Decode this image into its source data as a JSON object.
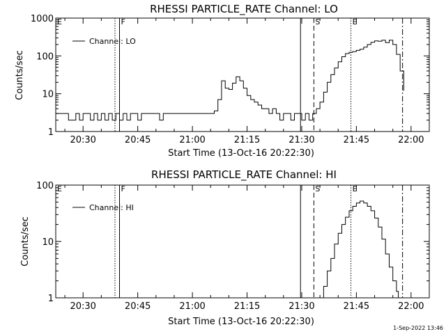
{
  "footer_timestamp": "1-Sep-2022 13:46",
  "chart_data": [
    {
      "type": "line",
      "title": "RHESSI PARTICLE_RATE Channel: LO",
      "xlabel": "Start Time (13-Oct-16 20:22:30)",
      "ylabel": "Counts/sec",
      "yscale": "log",
      "xlim": [
        "20:22:30",
        "22:05:00"
      ],
      "ylim": [
        1,
        1000
      ],
      "x_ticks": [
        "20:30",
        "20:45",
        "21:00",
        "21:15",
        "21:30",
        "21:45",
        "22:00"
      ],
      "y_ticks": [
        "1",
        "10",
        "100",
        "1000"
      ],
      "legend": {
        "position": "top-left",
        "label": "Channel: LO"
      },
      "markers": [
        {
          "label": "E",
          "time": "20:22:30",
          "style": "none"
        },
        {
          "label": "",
          "time": "20:38:45",
          "style": "dotted"
        },
        {
          "label": "F",
          "time": "20:40:00",
          "style": "solid"
        },
        {
          "label": "",
          "time": "21:29:40",
          "style": "solid"
        },
        {
          "label": "S",
          "time": "21:33:20",
          "style": "dashed"
        },
        {
          "label": "E",
          "time": "21:43:30",
          "style": "dotted"
        },
        {
          "label": "",
          "time": "21:57:40",
          "style": "dashdot"
        }
      ],
      "series": [
        {
          "name": "Channel: LO",
          "x": [
            "20:22:30",
            "20:24:00",
            "20:26:00",
            "20:28:00",
            "20:29:00",
            "20:30:00",
            "20:32:00",
            "20:33:00",
            "20:34:00",
            "20:35:00",
            "20:36:00",
            "20:37:00",
            "20:38:00",
            "20:39:00",
            "20:40:00",
            "20:41:00",
            "20:42:00",
            "20:43:00",
            "20:44:00",
            "20:45:00",
            "20:46:00",
            "20:48:00",
            "20:50:00",
            "20:51:00",
            "20:52:00",
            "20:53:00",
            "20:54:00",
            "20:56:00",
            "20:58:00",
            "21:00:00",
            "21:02:00",
            "21:04:00",
            "21:06:00",
            "21:07:00",
            "21:08:00",
            "21:09:00",
            "21:10:00",
            "21:11:00",
            "21:12:00",
            "21:13:00",
            "21:14:00",
            "21:15:00",
            "21:16:00",
            "21:17:00",
            "21:18:00",
            "21:19:00",
            "21:20:00",
            "21:21:00",
            "21:22:00",
            "21:23:00",
            "21:24:00",
            "21:25:00",
            "21:26:00",
            "21:27:00",
            "21:28:00",
            "21:29:00",
            "21:30:00",
            "21:31:00",
            "21:32:00",
            "21:33:00",
            "21:34:00",
            "21:35:00",
            "21:36:00",
            "21:37:00",
            "21:38:00",
            "21:39:00",
            "21:40:00",
            "21:41:00",
            "21:42:00",
            "21:43:00",
            "21:44:00",
            "21:45:00",
            "21:46:00",
            "21:47:00",
            "21:48:00",
            "21:49:00",
            "21:50:00",
            "21:51:00",
            "21:52:00",
            "21:53:00",
            "21:54:00",
            "21:55:00",
            "21:56:00",
            "21:57:00",
            "21:58:00"
          ],
          "y": [
            3,
            3,
            2,
            3,
            2,
            3,
            2,
            3,
            2,
            3,
            2,
            3,
            2,
            3,
            2,
            3,
            2,
            3,
            3,
            2,
            3,
            3,
            3,
            2,
            3,
            3,
            3,
            3,
            3,
            3,
            3,
            3,
            3.5,
            7,
            22,
            14,
            13,
            19,
            28,
            22,
            14,
            9,
            7,
            6,
            5,
            4,
            4,
            3,
            4,
            3,
            2,
            3,
            3,
            2,
            3,
            3,
            2,
            3,
            2,
            3,
            4,
            6,
            11,
            20,
            32,
            48,
            70,
            95,
            115,
            125,
            130,
            140,
            150,
            170,
            200,
            230,
            250,
            245,
            260,
            225,
            260,
            200,
            110,
            40,
            12
          ]
        }
      ]
    },
    {
      "type": "line",
      "title": "RHESSI PARTICLE_RATE Channel: HI",
      "xlabel": "Start Time (13-Oct-16 20:22:30)",
      "ylabel": "Counts/sec",
      "yscale": "log",
      "xlim": [
        "20:22:30",
        "22:05:00"
      ],
      "ylim": [
        1,
        100
      ],
      "x_ticks": [
        "20:30",
        "20:45",
        "21:00",
        "21:15",
        "21:30",
        "21:45",
        "22:00"
      ],
      "y_ticks": [
        "1",
        "10",
        "100"
      ],
      "legend": {
        "position": "top-left",
        "label": "Channel: HI"
      },
      "markers": [
        {
          "label": "E",
          "time": "20:22:30",
          "style": "none"
        },
        {
          "label": "",
          "time": "20:38:45",
          "style": "dotted"
        },
        {
          "label": "F",
          "time": "20:40:00",
          "style": "solid"
        },
        {
          "label": "",
          "time": "21:29:40",
          "style": "solid"
        },
        {
          "label": "S",
          "time": "21:33:20",
          "style": "dashed"
        },
        {
          "label": "E",
          "time": "21:43:30",
          "style": "dotted"
        },
        {
          "label": "",
          "time": "21:57:40",
          "style": "dashdot"
        }
      ],
      "series": [
        {
          "name": "Channel: HI",
          "x": [
            "21:35:00",
            "21:36:00",
            "21:37:00",
            "21:38:00",
            "21:39:00",
            "21:40:00",
            "21:41:00",
            "21:42:00",
            "21:43:00",
            "21:44:00",
            "21:45:00",
            "21:46:00",
            "21:47:00",
            "21:48:00",
            "21:49:00",
            "21:50:00",
            "21:51:00",
            "21:52:00",
            "21:53:00",
            "21:54:00",
            "21:55:00",
            "21:56:00",
            "21:56:30"
          ],
          "y": [
            1,
            1.6,
            3,
            5,
            9,
            14,
            20,
            27,
            35,
            42,
            48,
            52,
            48,
            42,
            35,
            26,
            18,
            11,
            6,
            3.5,
            2,
            1.3,
            1
          ]
        }
      ]
    }
  ]
}
